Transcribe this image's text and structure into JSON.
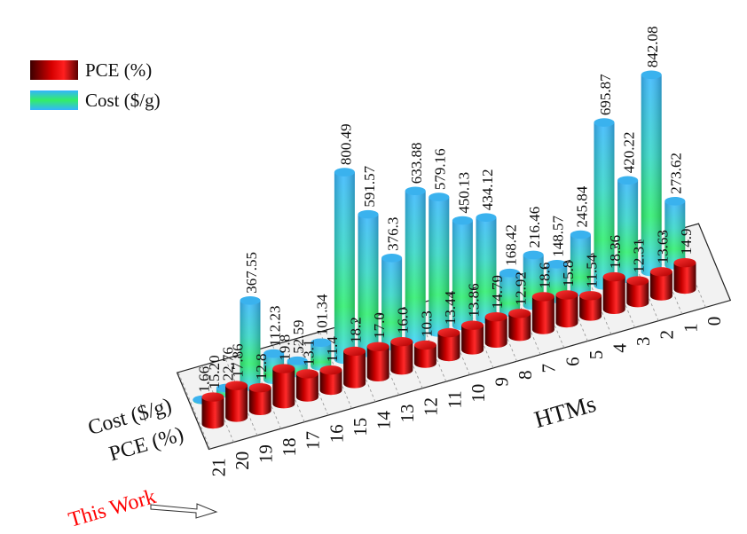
{
  "legend": [
    {
      "label": "PCE (%)",
      "key": "pce"
    },
    {
      "label": "Cost ($/g)",
      "key": "cost"
    }
  ],
  "axes": {
    "x_label": "HTMs",
    "row_labels": [
      "PCE (%)",
      "Cost ($/g)"
    ],
    "ticks": [
      "21",
      "20",
      "19",
      "18",
      "17",
      "16",
      "15",
      "14",
      "13",
      "12",
      "11",
      "10",
      "9",
      "8",
      "7",
      "6",
      "5",
      "4",
      "3",
      "2",
      "1",
      "0"
    ]
  },
  "annotation": {
    "text": "This Work",
    "color": "#ff0000",
    "points_to": "21"
  },
  "colors": {
    "pce": "#d80000",
    "cost_edge": "#2ab4ff",
    "cost_mid": "#2aee55"
  },
  "chart_data": {
    "type": "bar",
    "subtype": "3d-cylinder",
    "categories": [
      "21",
      "20",
      "19",
      "18",
      "17",
      "16",
      "15",
      "14",
      "13",
      "12",
      "11",
      "10",
      "9",
      "8",
      "7",
      "6",
      "5",
      "4",
      "3",
      "2",
      "1"
    ],
    "series": [
      {
        "name": "PCE (%)",
        "values": [
          "15.20",
          "17.86",
          "12.8",
          "19.8",
          "13.1",
          "11.4",
          "18.2",
          "17.0",
          "16.0",
          "10.3",
          "13.44",
          "13.86",
          "14.79",
          "12.92",
          "18.6",
          "15.8",
          "11.54",
          "18.36",
          "12.31",
          "13.63",
          "14.9"
        ]
      },
      {
        "name": "Cost ($/g)",
        "values": [
          "1.66",
          "22.76",
          "367.55",
          "112.23",
          "52.59",
          "101.34",
          "800.49",
          "591.57",
          "376.3",
          "633.88",
          "579.16",
          "450.13",
          "434.12",
          "168.42",
          "216.46",
          "148.57",
          "245.84",
          "695.87",
          "420.22",
          "842.08",
          "273.62"
        ]
      }
    ]
  }
}
